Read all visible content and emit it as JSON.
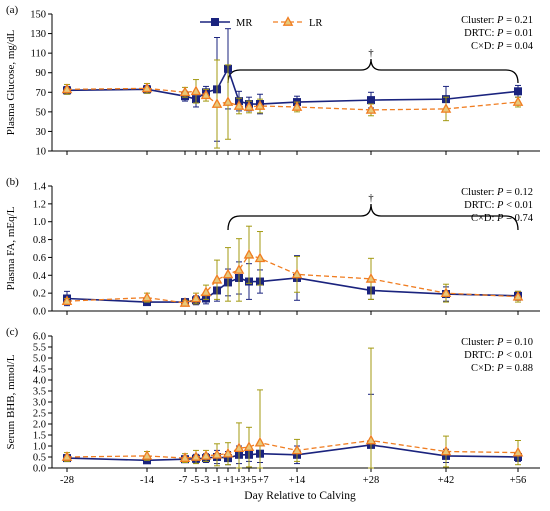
{
  "x_axis_label": "Day Relative to Calving",
  "x_ticks": [
    "-28",
    "-14",
    "-7",
    "-5",
    "-3",
    "-1",
    "+1",
    "+3",
    "+5",
    "+7",
    "+14",
    "+28",
    "+42",
    "+56"
  ],
  "legend": [
    {
      "name": "MR",
      "color": "#1a237e",
      "marker": "square"
    },
    {
      "name": "LR",
      "color": "#f07d21",
      "marker": "triangle"
    }
  ],
  "chart_data": [
    {
      "type": "line",
      "panel_label": "(a)",
      "ylabel": "Plasma Glucose, mg/dL",
      "ylim": [
        10,
        150
      ],
      "yticks": [
        10,
        30,
        50,
        70,
        90,
        110,
        130,
        150
      ],
      "stats": [
        "Cluster: P = 0.21",
        "DRTC: P = 0.01",
        "C×D: P = 0.04"
      ],
      "dagger": "†",
      "x": [
        -28,
        -14,
        -7,
        -5,
        -3,
        -1,
        1,
        3,
        5,
        7,
        14,
        28,
        42,
        56
      ],
      "series": [
        {
          "name": "MR",
          "values": [
            72,
            73,
            66,
            63,
            70,
            73,
            94,
            61,
            58,
            58,
            60,
            62,
            63,
            71
          ],
          "err": [
            4,
            4,
            5,
            8,
            6,
            53,
            41,
            10,
            7,
            10,
            6,
            8,
            13,
            6
          ]
        },
        {
          "name": "LR",
          "values": [
            73,
            74,
            70,
            71,
            67,
            58,
            60,
            56,
            55,
            56,
            55,
            52,
            53,
            60
          ],
          "err": [
            5,
            5,
            5,
            12,
            6,
            45,
            38,
            8,
            6,
            7,
            5,
            6,
            12,
            5
          ]
        }
      ]
    },
    {
      "type": "line",
      "panel_label": "(b)",
      "ylabel": "Plasma FA, mEq/L",
      "ylim": [
        0,
        1.4
      ],
      "yticks": [
        0,
        0.2,
        0.4,
        0.6,
        0.8,
        1.0,
        1.2,
        1.4
      ],
      "ytick_labels": [
        "0.0",
        "0.2",
        "0.4",
        "0.6",
        "0.8",
        "1.0",
        "1.2",
        "1.4"
      ],
      "stats": [
        "Cluster: P = 0.12",
        "DRTC: P < 0.01",
        "C×D: P = 0.74"
      ],
      "dagger": "†",
      "x": [
        -28,
        -14,
        -7,
        -5,
        -3,
        -1,
        1,
        3,
        5,
        7,
        14,
        28,
        42,
        56
      ],
      "series": [
        {
          "name": "MR",
          "values": [
            0.14,
            0.1,
            0.1,
            0.12,
            0.14,
            0.23,
            0.32,
            0.37,
            0.33,
            0.33,
            0.37,
            0.23,
            0.19,
            0.17
          ],
          "err": [
            0.08,
            0.03,
            0.03,
            0.05,
            0.06,
            0.12,
            0.15,
            0.18,
            0.2,
            0.13,
            0.25,
            0.1,
            0.08,
            0.05
          ]
        },
        {
          "name": "LR",
          "values": [
            0.11,
            0.15,
            0.09,
            0.14,
            0.21,
            0.35,
            0.41,
            0.46,
            0.63,
            0.59,
            0.41,
            0.36,
            0.2,
            0.16
          ],
          "err": [
            0.03,
            0.05,
            0.03,
            0.06,
            0.08,
            0.22,
            0.3,
            0.35,
            0.32,
            0.3,
            0.2,
            0.23,
            0.1,
            0.06
          ]
        }
      ]
    },
    {
      "type": "line",
      "panel_label": "(c)",
      "ylabel": "Serum BHB, mmol/L",
      "ylim": [
        0,
        6
      ],
      "yticks": [
        0,
        0.5,
        1,
        1.5,
        2,
        2.5,
        3,
        3.5,
        4,
        4.5,
        5,
        5.5,
        6
      ],
      "ytick_labels": [
        "0.0",
        "0.5",
        "1.0",
        "1.5",
        "2.0",
        "2.5",
        "3.0",
        "3.5",
        "4.0",
        "4.5",
        "5.0",
        "5.5",
        "6.0"
      ],
      "stats": [
        "Cluster: P = 0.10",
        "DRTC: P < 0.01",
        "C×D: P = 0.88"
      ],
      "x": [
        -28,
        -14,
        -7,
        -5,
        -3,
        -1,
        1,
        3,
        5,
        7,
        14,
        28,
        42,
        56
      ],
      "series": [
        {
          "name": "MR",
          "values": [
            0.45,
            0.35,
            0.4,
            0.42,
            0.45,
            0.5,
            0.45,
            0.6,
            0.6,
            0.65,
            0.6,
            1.05,
            0.55,
            0.5
          ],
          "err": [
            0.15,
            0.1,
            0.15,
            0.2,
            0.2,
            0.3,
            0.3,
            0.4,
            0.3,
            0.4,
            0.4,
            2.3,
            0.3,
            0.2
          ]
        },
        {
          "name": "LR",
          "values": [
            0.5,
            0.55,
            0.45,
            0.5,
            0.55,
            0.6,
            0.65,
            0.9,
            0.95,
            1.15,
            0.8,
            1.25,
            0.75,
            0.7
          ],
          "err": [
            0.2,
            0.2,
            0.2,
            0.3,
            0.25,
            0.5,
            0.5,
            1.15,
            0.9,
            2.4,
            0.5,
            4.2,
            0.7,
            0.55
          ]
        }
      ]
    }
  ]
}
